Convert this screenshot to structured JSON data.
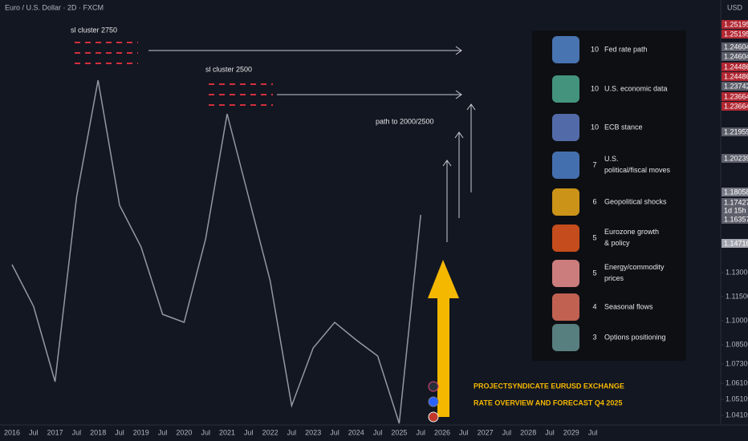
{
  "header": {
    "symbol": "Euro / U.S. Dollar · 2D · FXCM",
    "currency": "USD"
  },
  "chart_data": {
    "type": "line",
    "categories": [
      "2016",
      "Jul",
      "2017",
      "Jul",
      "2018",
      "Jul",
      "2019",
      "Jul",
      "2020",
      "Jul",
      "2021",
      "Jul",
      "2022",
      "Jul",
      "2023",
      "Jul",
      "2024",
      "Jul",
      "2025",
      "Jul",
      "2026",
      "Jul",
      "2027",
      "Jul",
      "2028",
      "Jul",
      "2029",
      "Jul"
    ],
    "series": [
      {
        "name": "EURUSD",
        "color": "#9598a1",
        "values": [
          1.135,
          1.109,
          1.062,
          1.177,
          1.25,
          1.172,
          1.146,
          1.104,
          1.099,
          1.151,
          1.229,
          1.177,
          1.125,
          1.047,
          1.083,
          1.099,
          1.088,
          1.078,
          1.036,
          1.166,
          null,
          null,
          null,
          null,
          null,
          null,
          null,
          null
        ]
      }
    ],
    "ylim": [
      1.035,
      1.3
    ],
    "yticks": [
      {
        "value": 1.041,
        "label": "1.04100"
      },
      {
        "value": 1.051,
        "label": "1.05100"
      },
      {
        "value": 1.061,
        "label": "1.06100"
      },
      {
        "value": 1.073,
        "label": "1.07300"
      },
      {
        "value": 1.085,
        "label": "1.08500"
      },
      {
        "value": 1.1,
        "label": "1.10000"
      },
      {
        "value": 1.115,
        "label": "1.11500"
      },
      {
        "value": 1.13,
        "label": "1.13000"
      }
    ],
    "grid": false,
    "price_tags": [
      {
        "label": "1.25195",
        "color": "#b22833"
      },
      {
        "label": "1.25195",
        "color": "#b22833"
      },
      {
        "label": "1.24604",
        "color": "#5d606b"
      },
      {
        "label": "1.24604",
        "color": "#5d606b"
      },
      {
        "label": "1.24486",
        "color": "#b22833"
      },
      {
        "label": "1.24486",
        "color": "#b22833"
      },
      {
        "label": "1.23742",
        "color": "#5d606b"
      },
      {
        "label": "1.23664",
        "color": "#b22833"
      },
      {
        "label": "1.23664",
        "color": "#b22833"
      },
      {
        "label": "1.21959",
        "color": "#5d606b"
      },
      {
        "label": "1.20239",
        "color": "#5d606b"
      },
      {
        "label": "1.18058",
        "color": "#787b86"
      },
      {
        "label": "1.17427",
        "color": "#5d606b"
      },
      {
        "label": "1d 15h",
        "color": "#5d606b"
      },
      {
        "label": "1.16357",
        "color": "#5d606b"
      },
      {
        "label": "1.14716",
        "color": "#a3a6af"
      }
    ],
    "annotations": {
      "cluster_high": "sl cluster 2750",
      "cluster_low": "sl cluster 2500",
      "path": "path to 2000/2500",
      "title_line1": "PROJECTSYNDICATE EURUSD EXCHANGE",
      "title_line2": "RATE OVERVIEW AND FORECAST Q4 2025"
    },
    "drivers": [
      {
        "score": "10",
        "label": "Fed rate path"
      },
      {
        "score": "10",
        "label": "U.S. economic data"
      },
      {
        "score": "10",
        "label": "ECB stance"
      },
      {
        "score": "7",
        "label": "U.S. political/fiscal moves"
      },
      {
        "score": "6",
        "label": "Geopolitical shocks"
      },
      {
        "score": "5",
        "label": "Eurozone growth & policy"
      },
      {
        "score": "5",
        "label": "Energy/commodity prices"
      },
      {
        "score": "4",
        "label": "Seasonal flows"
      },
      {
        "score": "3",
        "label": "Options positioning"
      }
    ]
  }
}
